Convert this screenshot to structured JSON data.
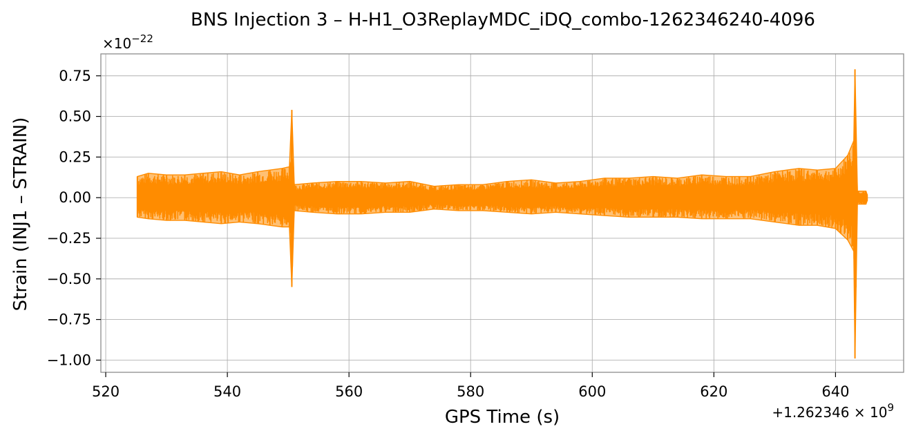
{
  "chart_data": {
    "type": "line",
    "title": "BNS Injection 3 – H-H1_O3ReplayMDC_iDQ_combo-1262346240-4096",
    "xlabel": "GPS Time (s)",
    "ylabel": "Strain (INJ1 – STRAIN)",
    "x_offset_label": "+1.262346 × 10",
    "x_offset_exp": "9",
    "y_scale_label": "×10",
    "y_scale_exp": "−22",
    "xlim": [
      519.2,
      651.2
    ],
    "ylim": [
      -1.075,
      0.885
    ],
    "grid": true,
    "line_color": "#ff8c00",
    "xticks": [
      {
        "value": 520,
        "label": "520"
      },
      {
        "value": 540,
        "label": "540"
      },
      {
        "value": 560,
        "label": "560"
      },
      {
        "value": 580,
        "label": "580"
      },
      {
        "value": 600,
        "label": "600"
      },
      {
        "value": 620,
        "label": "620"
      },
      {
        "value": 640,
        "label": "640"
      }
    ],
    "yticks": [
      {
        "value": 0.75,
        "label": "0.75"
      },
      {
        "value": 0.5,
        "label": "0.50"
      },
      {
        "value": 0.25,
        "label": "0.25"
      },
      {
        "value": 0.0,
        "label": "0.00"
      },
      {
        "value": -0.25,
        "label": "−0.25"
      },
      {
        "value": -0.5,
        "label": "−0.50"
      },
      {
        "value": -0.75,
        "label": "−0.75"
      },
      {
        "value": -1.0,
        "label": "−1.00"
      }
    ],
    "series": [
      {
        "color": "#ff8c00",
        "x": [
          525.2,
          527,
          530,
          533,
          536,
          539,
          542,
          545,
          547,
          549,
          550.2,
          550.6,
          551,
          554,
          558,
          562,
          566,
          570,
          574,
          578,
          582,
          586,
          590,
          594,
          598,
          602,
          606,
          610,
          614,
          618,
          622,
          626,
          630,
          634,
          637,
          640,
          642,
          643.0,
          643.2,
          643.6,
          645,
          645.2
        ],
        "upper": [
          0.13,
          0.15,
          0.14,
          0.14,
          0.15,
          0.16,
          0.14,
          0.16,
          0.17,
          0.18,
          0.19,
          0.54,
          0.08,
          0.09,
          0.1,
          0.1,
          0.09,
          0.1,
          0.07,
          0.08,
          0.08,
          0.1,
          0.11,
          0.09,
          0.1,
          0.12,
          0.12,
          0.13,
          0.12,
          0.14,
          0.13,
          0.13,
          0.16,
          0.18,
          0.17,
          0.18,
          0.26,
          0.35,
          0.79,
          0.04,
          0.04,
          0.02
        ],
        "lower": [
          -0.12,
          -0.13,
          -0.14,
          -0.14,
          -0.15,
          -0.16,
          -0.15,
          -0.16,
          -0.17,
          -0.18,
          -0.18,
          -0.55,
          -0.08,
          -0.09,
          -0.1,
          -0.1,
          -0.09,
          -0.09,
          -0.07,
          -0.08,
          -0.08,
          -0.09,
          -0.1,
          -0.09,
          -0.1,
          -0.11,
          -0.12,
          -0.12,
          -0.12,
          -0.13,
          -0.13,
          -0.13,
          -0.15,
          -0.17,
          -0.17,
          -0.19,
          -0.26,
          -0.33,
          -0.99,
          -0.04,
          -0.04,
          -0.02
        ]
      }
    ]
  }
}
